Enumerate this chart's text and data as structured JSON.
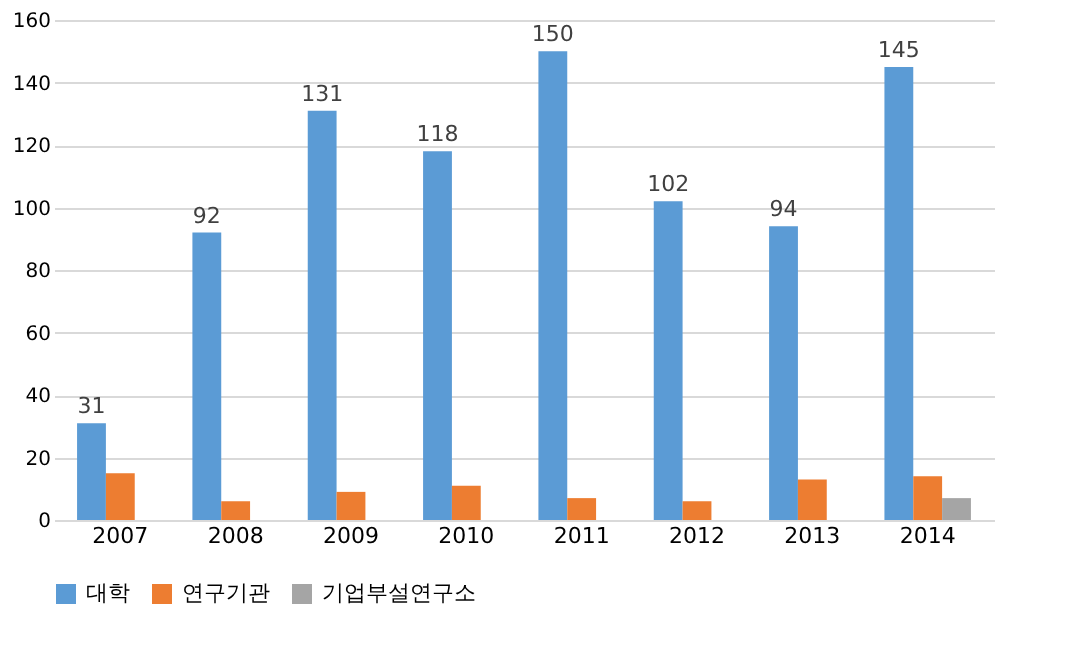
{
  "chart_data": {
    "type": "bar",
    "categories": [
      "2007",
      "2008",
      "2009",
      "2010",
      "2011",
      "2012",
      "2013",
      "2014"
    ],
    "series": [
      {
        "name": "대학",
        "color": "#5b9bd5",
        "values": [
          31,
          92,
          131,
          118,
          150,
          102,
          94,
          145
        ],
        "value_labels": [
          "31",
          "92",
          "131",
          "118",
          "150",
          "102",
          "94",
          "145"
        ]
      },
      {
        "name": "연구기관",
        "color": "#ed7d31",
        "values": [
          15,
          6,
          9,
          11,
          7,
          6,
          13,
          14
        ]
      },
      {
        "name": "기업부설연구소",
        "color": "#a5a5a5",
        "values": [
          0,
          0,
          0,
          0,
          0,
          0,
          0,
          7
        ]
      }
    ],
    "ylim": [
      0,
      160
    ],
    "yticks": [
      0,
      20,
      40,
      60,
      80,
      100,
      120,
      140,
      160
    ],
    "grid": "y",
    "legend": "bottom"
  }
}
